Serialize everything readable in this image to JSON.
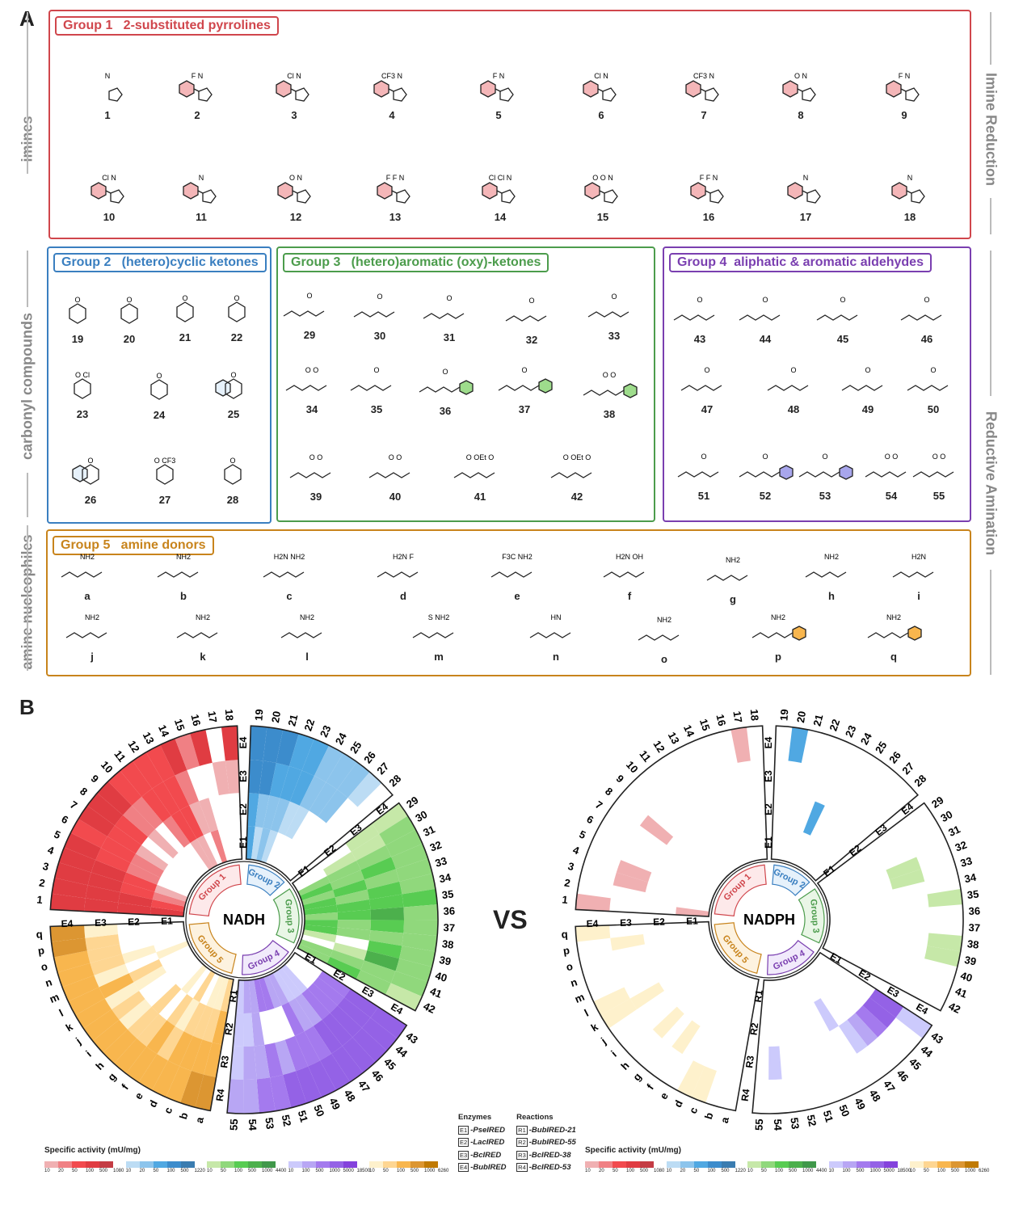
{
  "panel_a_label": "A",
  "panel_b_label": "B",
  "side_labels": {
    "left": [
      "imines",
      "carbonyl compounds",
      "amine nucleophiles"
    ],
    "right": [
      "Imine Reduction",
      "Reductive Amination"
    ]
  },
  "groups": [
    {
      "title": "Group 1   2-substituted pyrrolines",
      "short": "Group 1",
      "color": "#d0464c",
      "light": "#fde9ea",
      "compounds": [
        {
          "id": "1",
          "atoms": "N"
        },
        {
          "id": "2",
          "atoms": "F N"
        },
        {
          "id": "3",
          "atoms": "Cl N"
        },
        {
          "id": "4",
          "atoms": "CF3 N"
        },
        {
          "id": "5",
          "atoms": "F N"
        },
        {
          "id": "6",
          "atoms": "Cl N"
        },
        {
          "id": "7",
          "atoms": "CF3 N"
        },
        {
          "id": "8",
          "atoms": "O N"
        },
        {
          "id": "9",
          "atoms": "F N"
        },
        {
          "id": "10",
          "atoms": "Cl N"
        },
        {
          "id": "11",
          "atoms": "N"
        },
        {
          "id": "12",
          "atoms": "O N"
        },
        {
          "id": "13",
          "atoms": "F F N"
        },
        {
          "id": "14",
          "atoms": "Cl Cl N"
        },
        {
          "id": "15",
          "atoms": "O O N"
        },
        {
          "id": "16",
          "atoms": "F F N"
        },
        {
          "id": "17",
          "atoms": "N"
        },
        {
          "id": "18",
          "atoms": "N"
        }
      ]
    },
    {
      "title": "Group 2   (hetero)cyclic ketones",
      "short": "Group 2",
      "color": "#3a7fc0",
      "light": "#e6f1fb",
      "compounds": [
        {
          "id": "19",
          "atoms": "O"
        },
        {
          "id": "20",
          "atoms": "O"
        },
        {
          "id": "21",
          "atoms": "O"
        },
        {
          "id": "22",
          "atoms": "O"
        },
        {
          "id": "23",
          "atoms": "O Cl"
        },
        {
          "id": "24",
          "atoms": "O"
        },
        {
          "id": "25",
          "atoms": "O"
        },
        {
          "id": "26",
          "atoms": "O"
        },
        {
          "id": "27",
          "atoms": "O CF3"
        },
        {
          "id": "28",
          "atoms": "O"
        }
      ]
    },
    {
      "title": "Group 3   (hetero)aromatic (oxy)-ketones",
      "short": "Group 3",
      "color": "#4c9c4c",
      "light": "#e9f6e6",
      "compounds": [
        {
          "id": "29",
          "atoms": "O"
        },
        {
          "id": "30",
          "atoms": "O"
        },
        {
          "id": "31",
          "atoms": "O"
        },
        {
          "id": "32",
          "atoms": "O"
        },
        {
          "id": "33",
          "atoms": "O"
        },
        {
          "id": "34",
          "atoms": "O O"
        },
        {
          "id": "35",
          "atoms": "O"
        },
        {
          "id": "36",
          "atoms": "O"
        },
        {
          "id": "37",
          "atoms": "O"
        },
        {
          "id": "38",
          "atoms": "O O"
        },
        {
          "id": "39",
          "atoms": "O O"
        },
        {
          "id": "40",
          "atoms": "O O"
        },
        {
          "id": "41",
          "atoms": "O OEt O"
        },
        {
          "id": "42",
          "atoms": "O OEt O"
        }
      ]
    },
    {
      "title": "Group 4  aliphatic & aromatic aldehydes",
      "short": "Group 4",
      "color": "#7a3fb0",
      "light": "#f1eafb",
      "compounds": [
        {
          "id": "43",
          "atoms": "O"
        },
        {
          "id": "44",
          "atoms": "O"
        },
        {
          "id": "45",
          "atoms": "O"
        },
        {
          "id": "46",
          "atoms": "O"
        },
        {
          "id": "47",
          "atoms": "O"
        },
        {
          "id": "48",
          "atoms": "O"
        },
        {
          "id": "49",
          "atoms": "O"
        },
        {
          "id": "50",
          "atoms": "O"
        },
        {
          "id": "51",
          "atoms": "O"
        },
        {
          "id": "52",
          "atoms": "O"
        },
        {
          "id": "53",
          "atoms": "O"
        },
        {
          "id": "54",
          "atoms": "O O"
        },
        {
          "id": "55",
          "atoms": "O O"
        }
      ]
    },
    {
      "title": "Group 5   amine donors",
      "short": "Group 5",
      "color": "#c8841c",
      "light": "#fdf2df",
      "compounds": [
        {
          "id": "a",
          "atoms": "NH2"
        },
        {
          "id": "b",
          "atoms": "NH2"
        },
        {
          "id": "c",
          "atoms": "H2N NH2"
        },
        {
          "id": "d",
          "atoms": "H2N F"
        },
        {
          "id": "e",
          "atoms": "F3C NH2"
        },
        {
          "id": "f",
          "atoms": "H2N OH"
        },
        {
          "id": "g",
          "atoms": "NH2"
        },
        {
          "id": "h",
          "atoms": "NH2"
        },
        {
          "id": "i",
          "atoms": "H2N"
        },
        {
          "id": "j",
          "atoms": "NH2"
        },
        {
          "id": "k",
          "atoms": "NH2"
        },
        {
          "id": "l",
          "atoms": "NH2"
        },
        {
          "id": "m",
          "atoms": "S NH2"
        },
        {
          "id": "n",
          "atoms": "HN"
        },
        {
          "id": "o",
          "atoms": "NH2"
        },
        {
          "id": "p",
          "atoms": "NH2"
        },
        {
          "id": "q",
          "atoms": "NH2"
        }
      ]
    }
  ],
  "chart_data": [
    {
      "type": "heatmap",
      "layout": "circular",
      "cofactor": "NADH",
      "ring_labels": [
        "E1",
        "E2",
        "E3",
        "E4"
      ],
      "group5_ring_labels": [
        "R1",
        "R2",
        "R3",
        "R4"
      ],
      "level_scale": "0 = no activity, 1-5 = colour bins of legend",
      "levels": [
        [
          "432100000001102000",
          "443322101023311000",
          "444433332233320011",
          "444443444333342404"
        ],
        [
          "3121000000",
          "3222110000",
          "4433322200",
          "4443322210"
        ],
        [
          "00232332331022",
          "01223233220123",
          "11232334323422",
          "12222232222221"
        ],
        [
          "0001112233221",
          "3333223000211",
          "4444433323221",
          "4444444443322"
        ],
        [
          "21102010000010000",
          "32221202001201000",
          "33332322121312221",
          "44333333333333344"
        ]
      ]
    },
    {
      "type": "heatmap",
      "layout": "circular",
      "cofactor": "NADPH",
      "ring_labels": [
        "E1",
        "E2",
        "E3",
        "E4"
      ],
      "group5_ring_labels": [
        "R1",
        "R2",
        "R3",
        "R4"
      ],
      "level_scale": "0 = no activity, 1-5 = colour bins of legend",
      "levels": [
        [
          "100000000000000000",
          "000000000000000000",
          "001100010000000000",
          "100000000000000010"
        ],
        [
          "0000000000",
          "0000300000",
          "0000000000",
          "0300000000"
        ],
        [
          "00000000000000",
          "00000000000000",
          "00011000000000",
          "00000010011000"
        ],
        [
          "0000000000000",
          "0000010000000",
          "4432100000010",
          "1000000000000"
        ],
        [
          "00000000000000000",
          "00000000000000000",
          "00000101001000010",
          "00110000001100001"
        ]
      ]
    }
  ],
  "comparison_label": "VS",
  "legend": {
    "title": "Specific activity (mU/mg)",
    "scales": [
      {
        "colors": [
          "#f0b0b2",
          "#f08084",
          "#f24a4e",
          "#e03c42",
          "#c43c44"
        ],
        "ticks": [
          "10",
          "20",
          "50",
          "100",
          "500",
          "1080"
        ]
      },
      {
        "colors": [
          "#bcdcf4",
          "#8cc4ec",
          "#50a8e2",
          "#3c8ccc",
          "#3a7cb0"
        ],
        "ticks": [
          "10",
          "20",
          "50",
          "100",
          "500",
          "1220"
        ]
      },
      {
        "colors": [
          "#c6e8a8",
          "#90d87c",
          "#58cc52",
          "#4cb04c",
          "#40984a"
        ],
        "ticks": [
          "10",
          "50",
          "100",
          "500",
          "1000",
          "4400"
        ]
      },
      {
        "colors": [
          "#cccafc",
          "#b8a6f4",
          "#a47aee",
          "#9462e6",
          "#8442dc"
        ],
        "ticks": [
          "10",
          "100",
          "500",
          "1000",
          "5000",
          "18500"
        ]
      },
      {
        "colors": [
          "#fef1cc",
          "#fed692",
          "#f8b64e",
          "#dc9632",
          "#c07a04"
        ],
        "ticks": [
          "10",
          "50",
          "100",
          "500",
          "1000",
          "6260"
        ]
      }
    ]
  },
  "keys": {
    "enzymes_title": "Enzymes",
    "reactions_title": "Reactions",
    "enzymes": [
      {
        "k": "E1",
        "v": "-PseIRED"
      },
      {
        "k": "E2",
        "v": "-LacIRED"
      },
      {
        "k": "E3",
        "v": "-BcIRED"
      },
      {
        "k": "E4",
        "v": "-BubIRED"
      }
    ],
    "reactions": [
      {
        "k": "R1",
        "v": "-BubIRED-21"
      },
      {
        "k": "R2",
        "v": "-BubIRED-55"
      },
      {
        "k": "R3",
        "v": "-BcIRED-38"
      },
      {
        "k": "R4",
        "v": "-BcIRED-53"
      }
    ]
  }
}
